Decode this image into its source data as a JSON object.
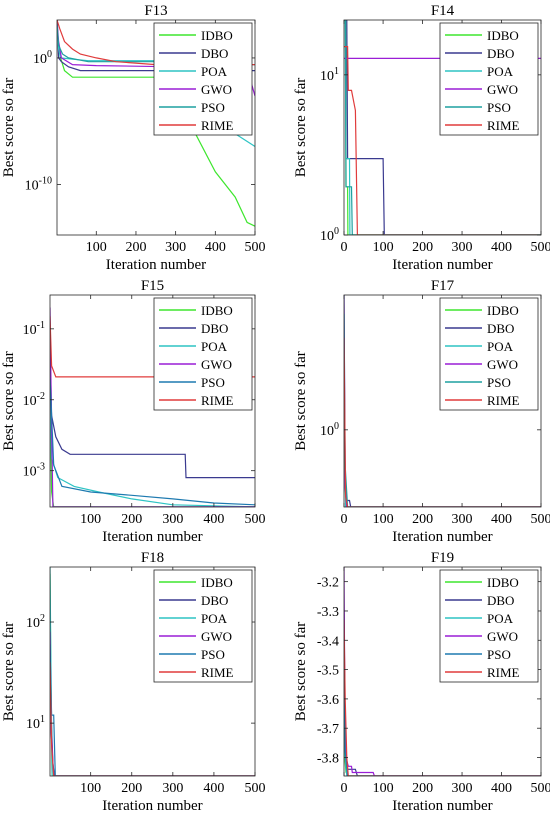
{
  "chart_data": [
    {
      "type": "line",
      "title": "F13",
      "xlabel": "Iteration number",
      "ylabel": "Best score so far",
      "y_scale": "log",
      "xlim": [
        1,
        500
      ],
      "ylim": [
        1e-14,
        1000.0
      ],
      "x_ticks": [
        100,
        200,
        300,
        400,
        500
      ],
      "y_ticks": [
        1,
        1e-10
      ],
      "y_tick_labels": [
        {
          "base": "10",
          "exp": "0"
        },
        {
          "base": "10",
          "exp": "-10"
        }
      ],
      "legend_position": "top-right",
      "series": [
        {
          "name": "IDBO",
          "color": "#3ee62e",
          "x": [
            1,
            5,
            10,
            20,
            40,
            260,
            300,
            350,
            400,
            450,
            480,
            500
          ],
          "y": [
            300,
            10,
            1,
            0.1,
            0.03,
            0.03,
            0.001,
            1e-06,
            1e-09,
            1e-11,
            1e-13,
            5e-14
          ]
        },
        {
          "name": "DBO",
          "color": "#3a3a8f",
          "x": [
            1,
            5,
            12,
            30,
            60,
            260,
            500
          ],
          "y": [
            2000,
            1,
            0.5,
            0.2,
            0.1,
            0.1,
            0.1
          ]
        },
        {
          "name": "POA",
          "color": "#2ec4c4",
          "x": [
            1,
            5,
            10,
            40,
            80,
            260,
            300,
            400,
            450,
            500
          ],
          "y": [
            300,
            5,
            1,
            0.8,
            0.6,
            0.6,
            0.01,
            1e-05,
            1e-06,
            1e-07
          ]
        },
        {
          "name": "GWO",
          "color": "#9a1ed6",
          "x": [
            1,
            5,
            12,
            40,
            100,
            300,
            480,
            500
          ],
          "y": [
            1000,
            20,
            1,
            0.3,
            0.25,
            0.2,
            0.15,
            0.001
          ]
        },
        {
          "name": "PSO",
          "color": "#1ea0a0",
          "x": [
            1,
            5,
            15,
            30,
            80,
            250,
            480,
            500
          ],
          "y": [
            500,
            10,
            2,
            1,
            0.5,
            0.5,
            0.3,
            0.3
          ]
        },
        {
          "name": "RIME",
          "color": "#e03c3c",
          "x": [
            1,
            8,
            20,
            40,
            60,
            100,
            150,
            250,
            500
          ],
          "y": [
            1000,
            200,
            20,
            5,
            2,
            1,
            0.5,
            0.3,
            0.3
          ]
        }
      ]
    },
    {
      "type": "line",
      "title": "F14",
      "xlabel": "Iteration number",
      "ylabel": "Best score so far",
      "y_scale": "log",
      "xlim": [
        1,
        500
      ],
      "ylim": [
        1,
        22
      ],
      "x_ticks": [
        0,
        100,
        200,
        300,
        400,
        500
      ],
      "y_ticks": [
        1,
        10
      ],
      "y_tick_labels": [
        {
          "base": "10",
          "exp": "0"
        },
        {
          "base": "10",
          "exp": "1"
        }
      ],
      "legend_position": "top-right",
      "series": [
        {
          "name": "IDBO",
          "color": "#3ee62e",
          "x": [
            1,
            5,
            6,
            10,
            11,
            500
          ],
          "y": [
            22,
            22,
            2,
            2,
            1,
            1
          ]
        },
        {
          "name": "DBO",
          "color": "#3a3a8f",
          "x": [
            1,
            8,
            10,
            30,
            100,
            103,
            500
          ],
          "y": [
            22,
            22,
            3,
            3,
            3,
            1,
            1
          ]
        },
        {
          "name": "POA",
          "color": "#2ec4c4",
          "x": [
            1,
            4,
            6,
            15,
            16,
            500
          ],
          "y": [
            22,
            22,
            3,
            3,
            1,
            1
          ]
        },
        {
          "name": "GWO",
          "color": "#9a1ed6",
          "x": [
            1,
            500
          ],
          "y": [
            12.67,
            12.67
          ]
        },
        {
          "name": "PSO",
          "color": "#1ea0a0",
          "x": [
            1,
            5,
            6,
            20,
            22,
            500
          ],
          "y": [
            22,
            22,
            2,
            2,
            1,
            1
          ]
        },
        {
          "name": "RIME",
          "color": "#e03c3c",
          "x": [
            1,
            10,
            12,
            20,
            30,
            35,
            500
          ],
          "y": [
            15,
            15,
            8,
            8,
            6,
            1,
            1
          ]
        }
      ]
    },
    {
      "type": "line",
      "title": "F15",
      "xlabel": "Iteration number",
      "ylabel": "Best score so far",
      "y_scale": "log",
      "xlim": [
        1,
        500
      ],
      "ylim": [
        0.0003075,
        0.3
      ],
      "x_ticks": [
        100,
        200,
        300,
        400,
        500
      ],
      "y_ticks": [
        0.1,
        0.01,
        0.001
      ],
      "y_tick_labels": [
        {
          "base": "10",
          "exp": "-1"
        },
        {
          "base": "10",
          "exp": "-2"
        },
        {
          "base": "10",
          "exp": "-3"
        }
      ],
      "legend_position": "top-right",
      "series": [
        {
          "name": "IDBO",
          "color": "#3ee62e",
          "x": [
            1,
            3,
            5,
            10,
            500
          ],
          "y": [
            0.05,
            0.003,
            0.0005,
            0.000308,
            0.000308
          ]
        },
        {
          "name": "DBO",
          "color": "#3a3a8f",
          "x": [
            1,
            5,
            15,
            30,
            50,
            330,
            332,
            500
          ],
          "y": [
            0.06,
            0.006,
            0.003,
            0.002,
            0.0017,
            0.0017,
            0.0008,
            0.0008
          ]
        },
        {
          "name": "POA",
          "color": "#2ec4c4",
          "x": [
            1,
            5,
            20,
            60,
            120,
            200,
            300,
            500
          ],
          "y": [
            0.02,
            0.0015,
            0.0008,
            0.0006,
            0.0005,
            0.0004,
            0.00033,
            0.00031
          ]
        },
        {
          "name": "GWO",
          "color": "#9a1ed6",
          "x": [
            1,
            4,
            8,
            500
          ],
          "y": [
            0.2,
            0.01,
            0.00031,
            0.00031
          ]
        },
        {
          "name": "PSO",
          "color": "#1e7ab0",
          "x": [
            1,
            10,
            30,
            100,
            200,
            300,
            400,
            500
          ],
          "y": [
            0.02,
            0.0012,
            0.0006,
            0.0005,
            0.00045,
            0.0004,
            0.00035,
            0.00033
          ]
        },
        {
          "name": "RIME",
          "color": "#e03c3c",
          "x": [
            1,
            5,
            15,
            500
          ],
          "y": [
            0.15,
            0.03,
            0.021,
            0.021
          ]
        }
      ]
    },
    {
      "type": "line",
      "title": "F17",
      "xlabel": "Iteration number",
      "ylabel": "Best score so far",
      "y_scale": "log",
      "xlim": [
        1,
        500
      ],
      "ylim": [
        0.398,
        5
      ],
      "x_ticks": [
        0,
        100,
        200,
        300,
        400,
        500
      ],
      "y_ticks": [
        1
      ],
      "y_tick_labels": [
        {
          "base": "10",
          "exp": "0"
        }
      ],
      "legend_position": "top-right",
      "series": [
        {
          "name": "IDBO",
          "color": "#3ee62e",
          "x": [
            1,
            3,
            6,
            500
          ],
          "y": [
            2,
            0.6,
            0.398,
            0.398
          ]
        },
        {
          "name": "DBO",
          "color": "#3a3a8f",
          "x": [
            1,
            4,
            8,
            15,
            18,
            500
          ],
          "y": [
            1.5,
            0.55,
            0.43,
            0.43,
            0.398,
            0.398
          ]
        },
        {
          "name": "POA",
          "color": "#2ec4c4",
          "x": [
            1,
            3,
            5,
            500
          ],
          "y": [
            5,
            1.2,
            0.398,
            0.398
          ]
        },
        {
          "name": "GWO",
          "color": "#9a1ed6",
          "x": [
            1,
            4,
            8,
            500
          ],
          "y": [
            5,
            0.5,
            0.398,
            0.398
          ]
        },
        {
          "name": "PSO",
          "color": "#1ea0a0",
          "x": [
            1,
            3,
            10,
            500
          ],
          "y": [
            4,
            0.7,
            0.398,
            0.398
          ]
        },
        {
          "name": "RIME",
          "color": "#e03c3c",
          "x": [
            1,
            5,
            10,
            500
          ],
          "y": [
            3,
            0.45,
            0.398,
            0.398
          ]
        }
      ]
    },
    {
      "type": "line",
      "title": "F18",
      "xlabel": "Iteration number",
      "ylabel": "Best score so far",
      "y_scale": "log",
      "xlim": [
        1,
        500
      ],
      "ylim": [
        3,
        350
      ],
      "x_ticks": [
        100,
        200,
        300,
        400,
        500
      ],
      "y_ticks": [
        100,
        10
      ],
      "y_tick_labels": [
        {
          "base": "10",
          "exp": "2"
        },
        {
          "base": "10",
          "exp": "1"
        }
      ],
      "legend_position": "top-right",
      "series": [
        {
          "name": "IDBO",
          "color": "#3ee62e",
          "x": [
            1,
            3,
            6,
            500
          ],
          "y": [
            300,
            30,
            3,
            3
          ]
        },
        {
          "name": "DBO",
          "color": "#3a3a8f",
          "x": [
            1,
            4,
            8,
            12,
            500
          ],
          "y": [
            100,
            12,
            4,
            3,
            3
          ]
        },
        {
          "name": "POA",
          "color": "#2ec4c4",
          "x": [
            1,
            3,
            6,
            500
          ],
          "y": [
            350,
            50,
            3,
            3
          ]
        },
        {
          "name": "GWO",
          "color": "#9a1ed6",
          "x": [
            1,
            4,
            10,
            500
          ],
          "y": [
            80,
            8,
            3,
            3
          ]
        },
        {
          "name": "PSO",
          "color": "#1e7ab0",
          "x": [
            1,
            5,
            10,
            14,
            500
          ],
          "y": [
            60,
            12,
            12,
            3,
            3
          ]
        },
        {
          "name": "RIME",
          "color": "#e03c3c",
          "x": [
            1,
            5,
            10,
            500
          ],
          "y": [
            40,
            6,
            3,
            3
          ]
        }
      ]
    },
    {
      "type": "line",
      "title": "F19",
      "xlabel": "Iteration number",
      "ylabel": "Best score so far",
      "y_scale": "linear",
      "xlim": [
        1,
        500
      ],
      "ylim": [
        -3.863,
        -3.15
      ],
      "x_ticks": [
        0,
        100,
        200,
        300,
        400,
        500
      ],
      "y_ticks": [
        -3.2,
        -3.3,
        -3.4,
        -3.5,
        -3.6,
        -3.7,
        -3.8
      ],
      "legend_position": "top-right",
      "series": [
        {
          "name": "IDBO",
          "color": "#3ee62e",
          "x": [
            1,
            3,
            6,
            12,
            500
          ],
          "y": [
            -3.5,
            -3.8,
            -3.85,
            -3.863,
            -3.863
          ]
        },
        {
          "name": "DBO",
          "color": "#3a3a8f",
          "x": [
            1,
            4,
            10,
            30,
            35,
            500
          ],
          "y": [
            -3.3,
            -3.75,
            -3.84,
            -3.84,
            -3.863,
            -3.863
          ]
        },
        {
          "name": "POA",
          "color": "#2ec4c4",
          "x": [
            1,
            4,
            8,
            500
          ],
          "y": [
            -3.4,
            -3.8,
            -3.863,
            -3.863
          ]
        },
        {
          "name": "GWO",
          "color": "#9a1ed6",
          "x": [
            1,
            3,
            6,
            12,
            20,
            22,
            75,
            78,
            500
          ],
          "y": [
            -3.15,
            -3.6,
            -3.8,
            -3.83,
            -3.83,
            -3.851,
            -3.851,
            -3.863,
            -3.863
          ]
        },
        {
          "name": "PSO",
          "color": "#1e7ab0",
          "x": [
            1,
            4,
            10,
            500
          ],
          "y": [
            -3.5,
            -3.78,
            -3.863,
            -3.863
          ]
        },
        {
          "name": "RIME",
          "color": "#e03c3c",
          "x": [
            1,
            4,
            8,
            12,
            500
          ],
          "y": [
            -3.33,
            -3.6,
            -3.8,
            -3.863,
            -3.863
          ]
        }
      ]
    }
  ]
}
